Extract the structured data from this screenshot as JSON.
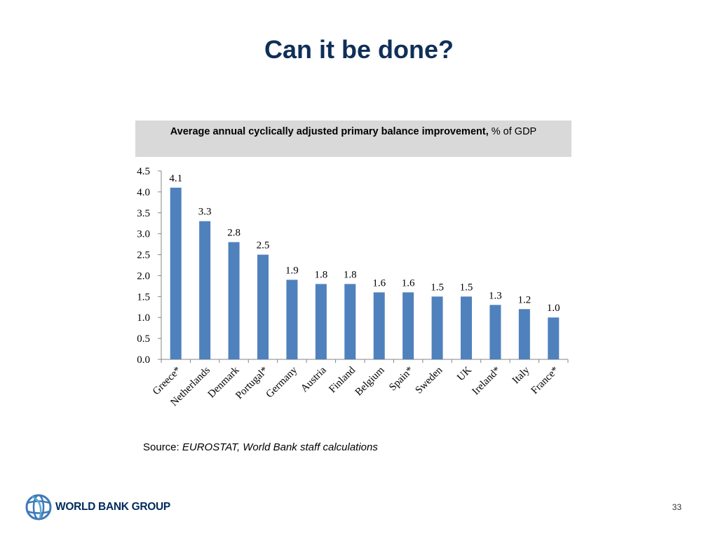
{
  "slide": {
    "title": "Can it be done?",
    "page_number": "33"
  },
  "chart_header": {
    "bold_text": "Average annual cyclically adjusted primary balance improvement,",
    "normal_text": " % of GDP"
  },
  "source": {
    "label": "Source: ",
    "text": "EUROSTAT, World Bank staff calculations"
  },
  "logo": {
    "text": "WORLD BANK GROUP"
  },
  "colors": {
    "bar": "#4f81bd",
    "title": "#0f2f57",
    "header_bg": "#d9d9d9"
  },
  "chart_data": {
    "type": "bar",
    "categories": [
      "Greece*",
      "Netherlands",
      "Denmark",
      "Portugal*",
      "Germany",
      "Austria",
      "Finland",
      "Belgium",
      "Spain*",
      "Sweden",
      "UK",
      "Ireland*",
      "Italy",
      "France*"
    ],
    "values": [
      4.1,
      3.3,
      2.8,
      2.5,
      1.9,
      1.8,
      1.8,
      1.6,
      1.6,
      1.5,
      1.5,
      1.3,
      1.2,
      1.0
    ],
    "data_labels": [
      "4.1",
      "3.3",
      "2.8",
      "2.5",
      "1.9",
      "1.8",
      "1.8",
      "1.6",
      "1.6",
      "1.5",
      "1.5",
      "1.3",
      "1.2",
      "1.0"
    ],
    "ylim": [
      0,
      4.5
    ],
    "yticks": [
      "0.0",
      "0.5",
      "1.0",
      "1.5",
      "2.0",
      "2.5",
      "3.0",
      "3.5",
      "4.0",
      "4.5"
    ],
    "grid": false,
    "legend": "none"
  }
}
